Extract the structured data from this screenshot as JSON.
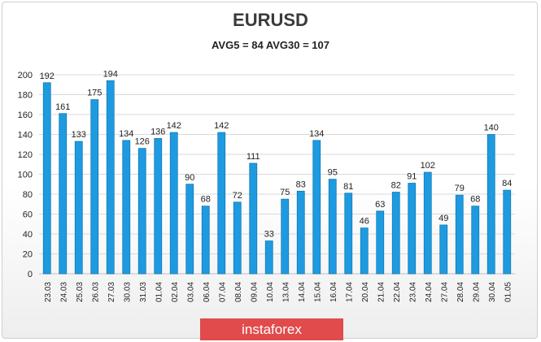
{
  "colors": {
    "bar_fill": "#1e9be0",
    "bar_edge": "#1279b5",
    "grid": "#d9d9d9",
    "text": "#222222",
    "watermark_bg": "#e14b4b"
  },
  "chart_data": {
    "type": "bar",
    "title": "EURUSD",
    "subtitle": "AVG5 = 84 AVG30 = 107",
    "categories": [
      "23.03",
      "24.03",
      "25.03",
      "26.03",
      "27.03",
      "30.03",
      "31.03",
      "01.04",
      "02.04",
      "03.04",
      "06.04",
      "07.04",
      "08.04",
      "09.04",
      "10.04",
      "13.04",
      "14.04",
      "15.04",
      "16.04",
      "17.04",
      "20.04",
      "21.04",
      "22.04",
      "23.04",
      "24.04",
      "27.04",
      "28.04",
      "29.04",
      "30.04",
      "01.05"
    ],
    "values": [
      192,
      161,
      133,
      175,
      194,
      134,
      126,
      136,
      142,
      90,
      68,
      142,
      72,
      111,
      33,
      75,
      83,
      134,
      95,
      81,
      46,
      63,
      82,
      91,
      102,
      49,
      79,
      68,
      140,
      84
    ],
    "ylim": [
      0,
      200
    ],
    "yticks": [
      0,
      20,
      40,
      60,
      80,
      100,
      120,
      140,
      160,
      180,
      200
    ],
    "grid": true,
    "legend": "none",
    "xlabel": "",
    "ylabel": ""
  },
  "watermark": {
    "text": "instaforex"
  }
}
